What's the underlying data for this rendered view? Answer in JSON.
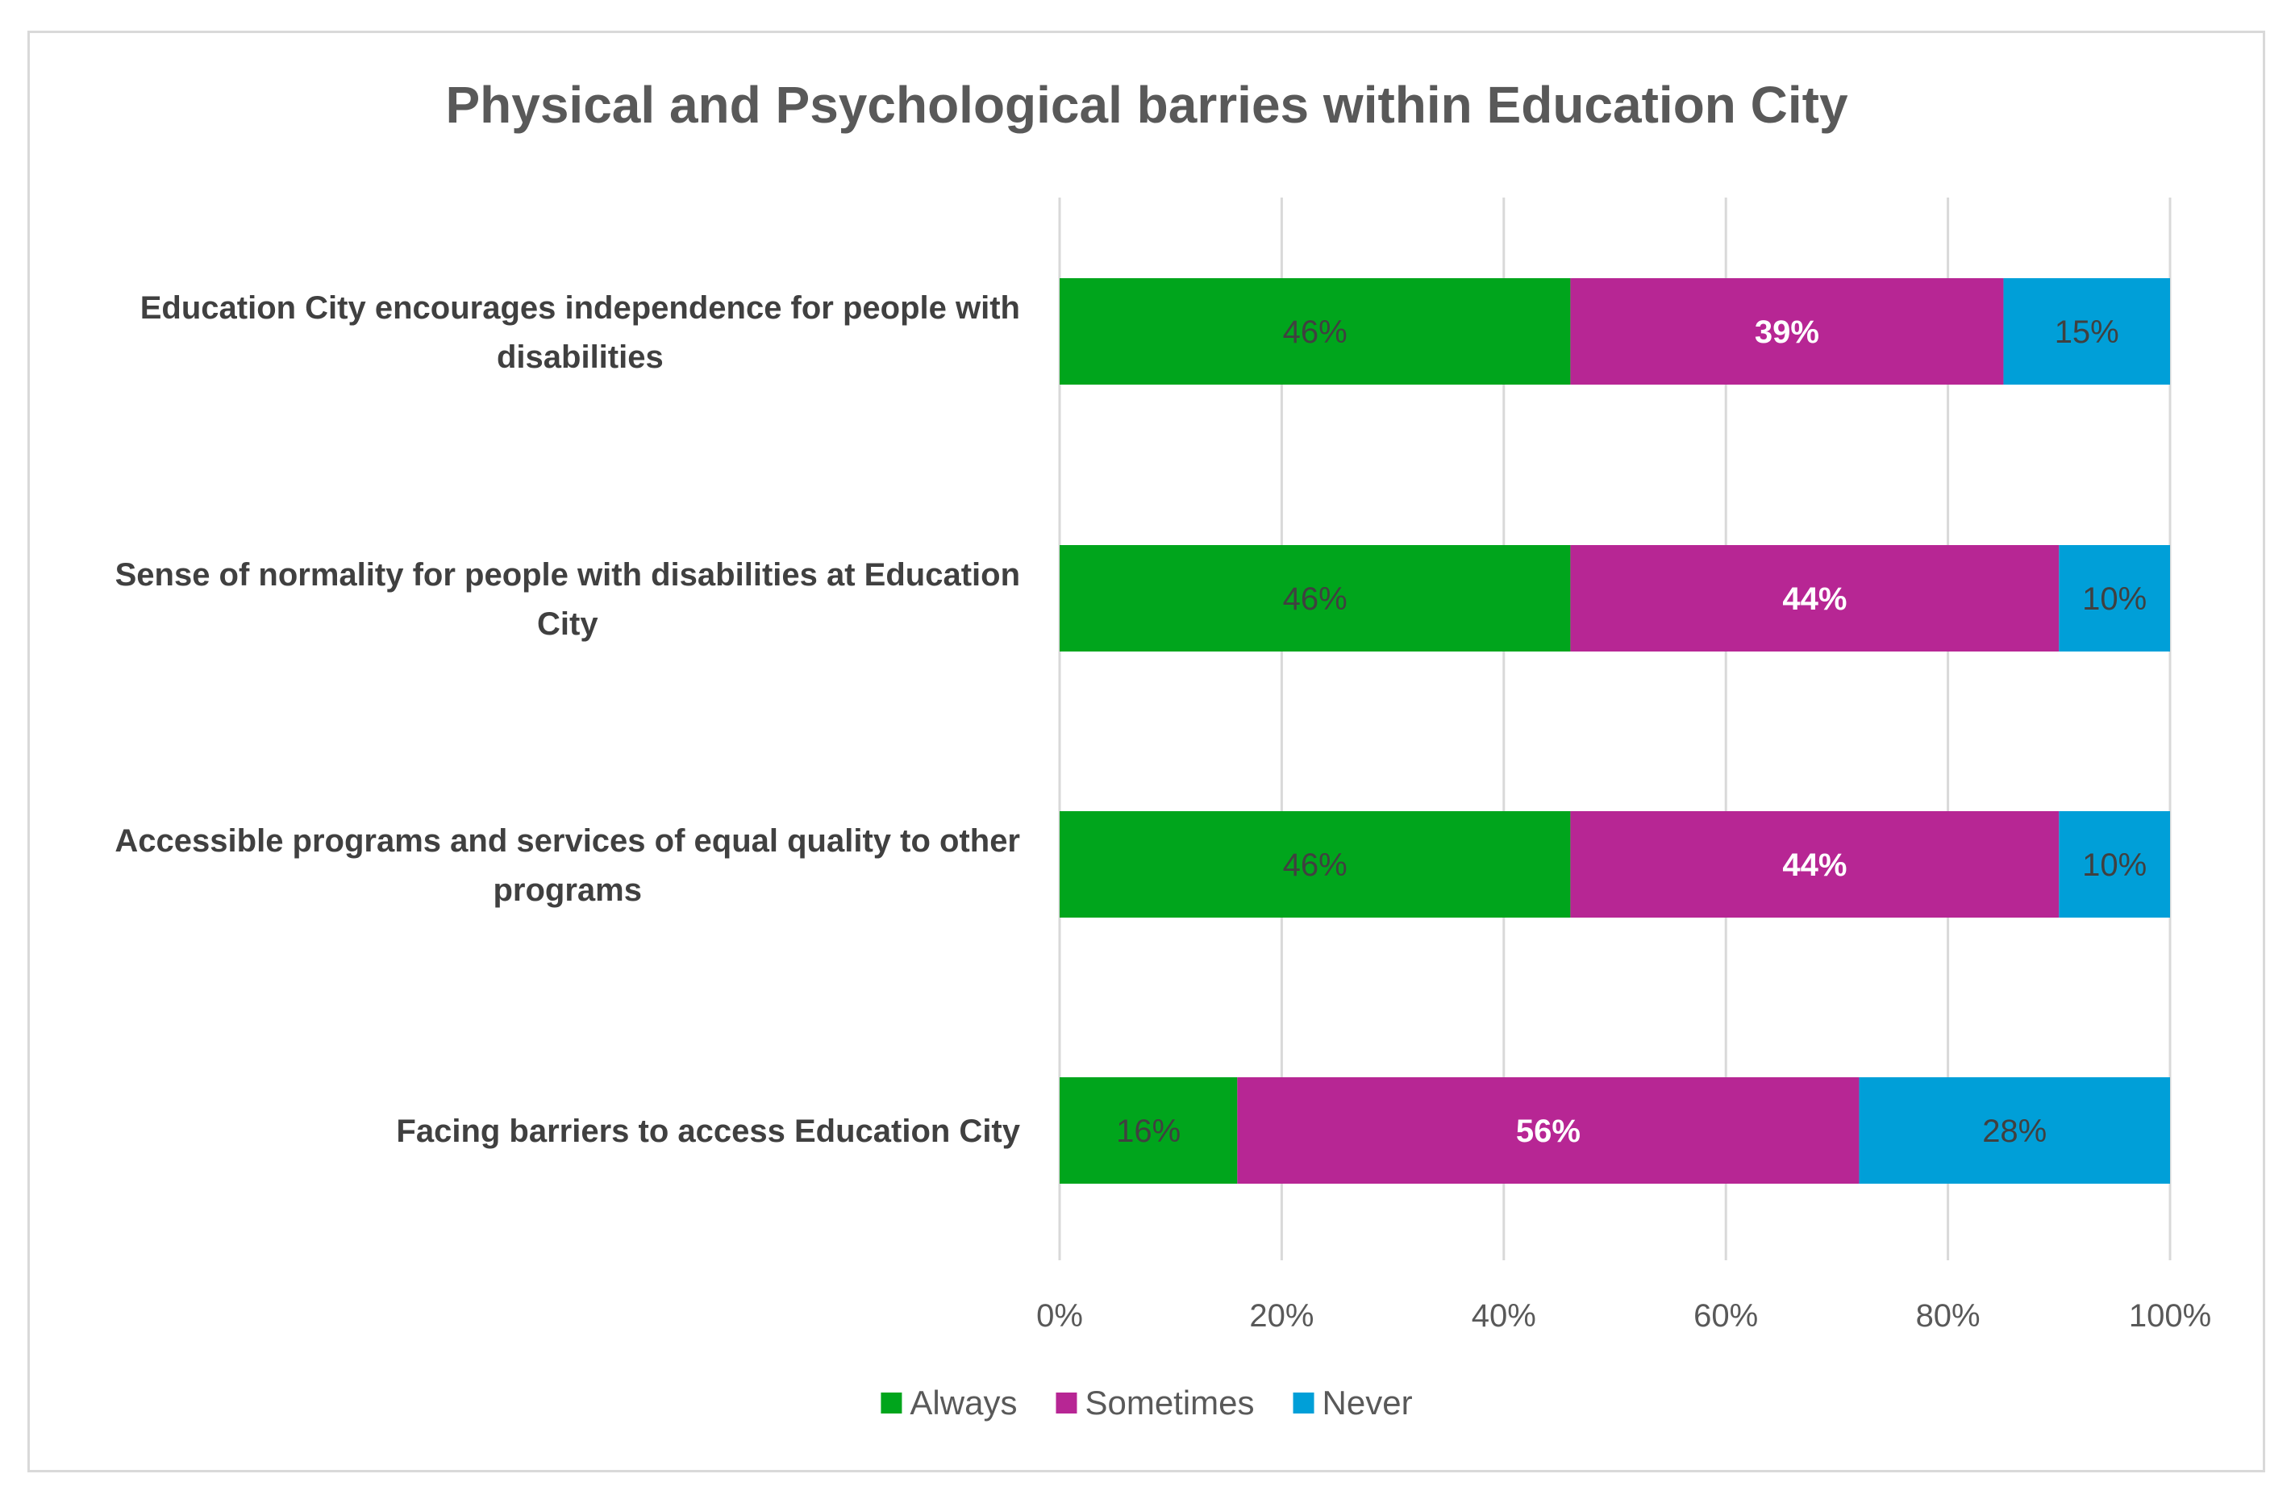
{
  "chart_data": {
    "type": "bar",
    "orientation": "horizontal",
    "stacked": "percent",
    "title": "Physical and Psychological barries within Education City",
    "categories": [
      [
        "Education City encourages independence for people with",
        "disabilities"
      ],
      [
        "Sense of normality for people with disabilities at Education",
        "City"
      ],
      [
        "Accessible programs and services of equal quality to other",
        "programs"
      ],
      [
        "Facing barriers to access Education City"
      ]
    ],
    "series": [
      {
        "name": "Always",
        "color": "#00A51C",
        "label_color": "#404040",
        "values": [
          46,
          46,
          46,
          16
        ],
        "labels": [
          "46%",
          "46%",
          "46%",
          "16%"
        ]
      },
      {
        "name": "Sometimes",
        "color": "#B72694",
        "label_color": "#ffffff",
        "label_bold": true,
        "values": [
          39,
          44,
          44,
          56
        ],
        "labels": [
          "39%",
          "44%",
          "44%",
          "56%"
        ]
      },
      {
        "name": "Never",
        "color": "#009FD8",
        "label_color": "#404040",
        "values": [
          15,
          10,
          10,
          28
        ],
        "labels": [
          "15%",
          "10%",
          "10%",
          "28%"
        ]
      }
    ],
    "xlim": [
      0,
      100
    ],
    "x_ticks": [
      0,
      20,
      40,
      60,
      80,
      100
    ],
    "x_tick_labels": [
      "0%",
      "20%",
      "40%",
      "60%",
      "80%",
      "100%"
    ],
    "grid": true,
    "legend_position": "bottom"
  }
}
